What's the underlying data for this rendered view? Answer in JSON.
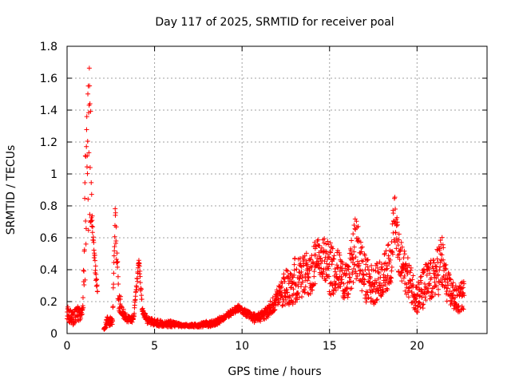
{
  "chart_data": {
    "type": "scatter",
    "title": "Day 117 of 2025, SRMTID for receiver poal",
    "xlabel": "GPS time / hours",
    "ylabel": "SRMTID / TECUs",
    "xlim": [
      0,
      24
    ],
    "ylim": [
      0,
      1.8
    ],
    "xticks": [
      0,
      5,
      10,
      15,
      20
    ],
    "xtick_labels": [
      "0",
      "5",
      "10",
      "15",
      "20"
    ],
    "yticks": [
      0,
      0.2,
      0.4,
      0.6,
      0.8,
      1,
      1.2,
      1.4,
      1.6,
      1.8
    ],
    "ytick_labels": [
      "0",
      "0.2",
      "0.4",
      "0.6",
      "0.8",
      "1",
      "1.2",
      "1.4",
      "1.6",
      "1.8"
    ],
    "grid": true,
    "marker": "+",
    "series_color": "#ff0000",
    "profile": {
      "description": "approximate envelope of the scatter (center value with spread) at sampled hours",
      "x": [
        0.0,
        0.3,
        0.6,
        0.9,
        1.1,
        1.3,
        1.45,
        1.6,
        2.0,
        2.3,
        2.6,
        2.75,
        2.9,
        3.1,
        3.4,
        3.8,
        4.1,
        4.3,
        4.6,
        5.0,
        5.5,
        6.0,
        6.5,
        7.0,
        7.5,
        8.0,
        8.5,
        9.0,
        9.5,
        9.8,
        10.2,
        10.6,
        11.0,
        11.5,
        12.0,
        12.5,
        13.0,
        13.5,
        14.0,
        14.5,
        15.0,
        15.5,
        16.0,
        16.5,
        17.0,
        17.5,
        18.0,
        18.5,
        18.7,
        19.0,
        19.5,
        20.0,
        20.5,
        21.0,
        21.4,
        21.7,
        22.0,
        22.3,
        22.7
      ],
      "center": [
        0.13,
        0.1,
        0.12,
        0.14,
        0.9,
        1.2,
        0.66,
        0.42,
        0.0,
        0.08,
        0.07,
        0.75,
        0.3,
        0.15,
        0.09,
        0.09,
        0.45,
        0.15,
        0.08,
        0.07,
        0.06,
        0.06,
        0.05,
        0.05,
        0.05,
        0.06,
        0.07,
        0.1,
        0.14,
        0.16,
        0.13,
        0.1,
        0.1,
        0.14,
        0.22,
        0.3,
        0.33,
        0.35,
        0.4,
        0.5,
        0.4,
        0.4,
        0.3,
        0.55,
        0.35,
        0.3,
        0.35,
        0.45,
        0.75,
        0.45,
        0.35,
        0.22,
        0.3,
        0.35,
        0.45,
        0.3,
        0.25,
        0.2,
        0.25
      ],
      "spread": [
        0.05,
        0.05,
        0.05,
        0.04,
        0.6,
        0.5,
        0.03,
        0.05,
        0.0,
        0.03,
        0.03,
        0.07,
        0.15,
        0.04,
        0.02,
        0.02,
        0.04,
        0.03,
        0.02,
        0.02,
        0.02,
        0.02,
        0.01,
        0.01,
        0.01,
        0.02,
        0.02,
        0.02,
        0.02,
        0.02,
        0.02,
        0.03,
        0.03,
        0.04,
        0.06,
        0.12,
        0.15,
        0.13,
        0.15,
        0.12,
        0.18,
        0.12,
        0.12,
        0.2,
        0.15,
        0.12,
        0.12,
        0.15,
        0.15,
        0.15,
        0.12,
        0.1,
        0.15,
        0.12,
        0.2,
        0.1,
        0.1,
        0.08,
        0.1
      ],
      "gaps": [
        [
          1.75,
          2.1
        ],
        [
          22.9,
          24.0
        ]
      ]
    }
  }
}
